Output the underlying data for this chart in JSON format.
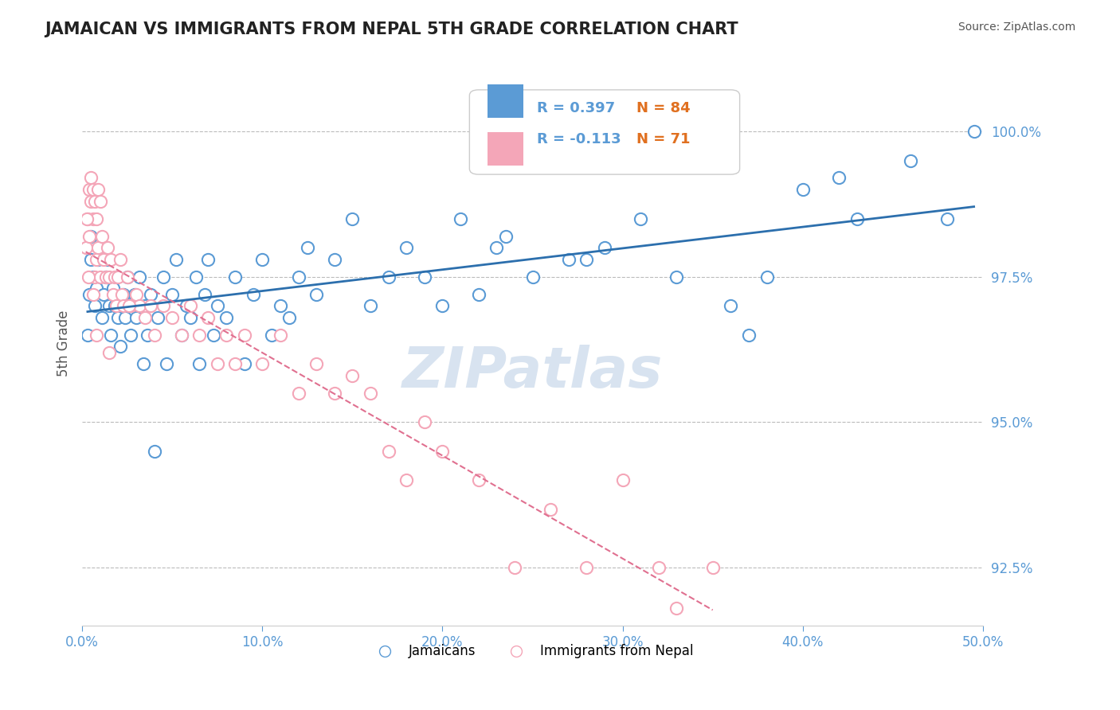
{
  "title": "JAMAICAN VS IMMIGRANTS FROM NEPAL 5TH GRADE CORRELATION CHART",
  "source_text": "Source: ZipAtlas.com",
  "xlabel": "",
  "ylabel": "5th Grade",
  "xlim": [
    0.0,
    50.0
  ],
  "ylim": [
    91.5,
    101.2
  ],
  "yticks": [
    92.5,
    95.0,
    97.5,
    100.0
  ],
  "yticklabels": [
    "92.5%",
    "95.0%",
    "97.5%",
    "100.0%"
  ],
  "xticks": [
    0.0,
    10.0,
    20.0,
    30.0,
    40.0,
    50.0
  ],
  "xticklabels": [
    "0.0%",
    "10.0%",
    "20.0%",
    "30.0%",
    "40.0%",
    "50.0%"
  ],
  "legend_r1": "R = 0.397",
  "legend_n1": "N = 84",
  "legend_r2": "R = -0.113",
  "legend_n2": "N = 71",
  "blue_color": "#5b9bd5",
  "pink_color": "#f4a6b8",
  "blue_line_color": "#2c6fad",
  "pink_line_color": "#e07090",
  "watermark": "ZIPatlas",
  "watermark_color": "#c8d8ea",
  "blue_scatter_x": [
    0.3,
    0.4,
    0.5,
    0.5,
    0.6,
    0.7,
    0.8,
    0.9,
    1.0,
    1.1,
    1.2,
    1.3,
    1.4,
    1.5,
    1.6,
    1.7,
    1.8,
    2.0,
    2.1,
    2.2,
    2.3,
    2.4,
    2.5,
    2.6,
    2.7,
    2.9,
    3.0,
    3.2,
    3.4,
    3.5,
    3.6,
    3.8,
    4.0,
    4.2,
    4.5,
    4.7,
    5.0,
    5.2,
    5.5,
    5.8,
    6.0,
    6.3,
    6.5,
    6.8,
    7.0,
    7.3,
    7.5,
    8.0,
    8.5,
    9.0,
    9.5,
    10.0,
    10.5,
    11.0,
    11.5,
    12.0,
    12.5,
    13.0,
    14.0,
    15.0,
    16.0,
    17.0,
    18.0,
    19.0,
    20.0,
    21.0,
    22.0,
    23.0,
    25.0,
    27.0,
    29.0,
    31.0,
    33.0,
    36.0,
    38.0,
    40.0,
    43.0,
    46.0,
    48.0,
    49.5,
    23.5,
    28.0,
    42.0,
    37.0
  ],
  "blue_scatter_y": [
    96.5,
    97.2,
    97.8,
    98.2,
    97.5,
    97.0,
    97.3,
    97.8,
    98.0,
    96.8,
    97.2,
    97.5,
    97.8,
    97.0,
    96.5,
    97.3,
    97.0,
    96.8,
    96.3,
    97.0,
    97.2,
    96.8,
    97.5,
    97.0,
    96.5,
    97.2,
    96.8,
    97.5,
    96.0,
    97.0,
    96.5,
    97.2,
    94.5,
    96.8,
    97.5,
    96.0,
    97.2,
    97.8,
    96.5,
    97.0,
    96.8,
    97.5,
    96.0,
    97.2,
    97.8,
    96.5,
    97.0,
    96.8,
    97.5,
    96.0,
    97.2,
    97.8,
    96.5,
    97.0,
    96.8,
    97.5,
    98.0,
    97.2,
    97.8,
    98.5,
    97.0,
    97.5,
    98.0,
    97.5,
    97.0,
    98.5,
    97.2,
    98.0,
    97.5,
    97.8,
    98.0,
    98.5,
    97.5,
    97.0,
    97.5,
    99.0,
    98.5,
    99.5,
    98.5,
    100.0,
    98.2,
    97.8,
    99.2,
    96.5
  ],
  "pink_scatter_x": [
    0.2,
    0.3,
    0.4,
    0.5,
    0.5,
    0.6,
    0.6,
    0.7,
    0.7,
    0.8,
    0.8,
    0.9,
    0.9,
    1.0,
    1.0,
    1.1,
    1.2,
    1.3,
    1.4,
    1.5,
    1.6,
    1.7,
    1.8,
    1.9,
    2.0,
    2.1,
    2.2,
    2.3,
    2.5,
    2.7,
    3.0,
    3.2,
    3.5,
    3.8,
    4.0,
    4.5,
    5.0,
    5.5,
    6.0,
    6.5,
    7.0,
    7.5,
    8.0,
    8.5,
    9.0,
    10.0,
    11.0,
    12.0,
    13.0,
    14.0,
    15.0,
    16.0,
    17.0,
    18.0,
    19.0,
    20.0,
    22.0,
    24.0,
    26.0,
    28.0,
    30.0,
    32.0,
    33.0,
    35.0,
    2.6,
    1.5,
    0.8,
    0.6,
    0.4,
    0.35,
    0.25
  ],
  "pink_scatter_y": [
    98.0,
    98.5,
    99.0,
    98.8,
    99.2,
    98.5,
    99.0,
    97.5,
    98.8,
    97.8,
    98.5,
    98.0,
    99.0,
    97.5,
    98.8,
    98.2,
    97.8,
    97.5,
    98.0,
    97.5,
    97.8,
    97.2,
    97.5,
    97.0,
    97.5,
    97.8,
    97.2,
    97.0,
    97.5,
    97.0,
    97.2,
    97.0,
    96.8,
    97.0,
    96.5,
    97.0,
    96.8,
    96.5,
    97.0,
    96.5,
    96.8,
    96.0,
    96.5,
    96.0,
    96.5,
    96.0,
    96.5,
    95.5,
    96.0,
    95.5,
    95.8,
    95.5,
    94.5,
    94.0,
    95.0,
    94.5,
    94.0,
    92.5,
    93.5,
    92.5,
    94.0,
    92.5,
    91.8,
    92.5,
    97.0,
    96.2,
    96.5,
    97.2,
    98.2,
    97.5,
    98.5
  ]
}
